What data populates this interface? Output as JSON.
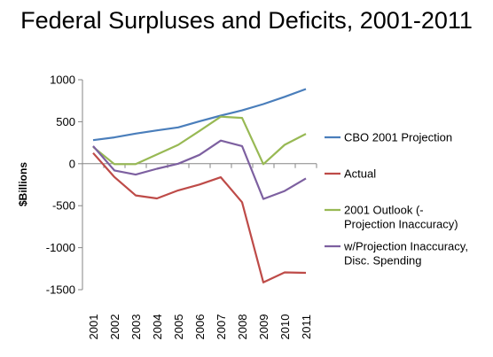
{
  "chart_data": {
    "type": "line",
    "title": "Federal Surpluses and Deficits, 2001-2011",
    "xlabel": "",
    "ylabel": "$Billions",
    "categories": [
      "2001",
      "2002",
      "2003",
      "2004",
      "2005",
      "2006",
      "2007",
      "2008",
      "2009",
      "2010",
      "2011"
    ],
    "ylim": [
      -1500,
      1000
    ],
    "yticks": [
      1000,
      500,
      0,
      -500,
      -1000,
      -1500
    ],
    "grid": false,
    "legend_position": "right",
    "series": [
      {
        "name": "CBO 2001 Projection",
        "color": "#4a7ebb",
        "values": [
          281,
          313,
          359,
          397,
          433,
          505,
          573,
          635,
          710,
          796,
          889
        ]
      },
      {
        "name": "Actual",
        "color": "#be4b48",
        "values": [
          128,
          -158,
          -378,
          -413,
          -318,
          -248,
          -161,
          -459,
          -1413,
          -1294,
          -1300
        ]
      },
      {
        "name": "2001 Outlook (-Projection Inaccuracy)",
        "color": "#98b954",
        "legend_lines": [
          "2001 Outlook (-",
          "Projection Inaccuracy)"
        ],
        "values": [
          200,
          -5,
          -5,
          110,
          225,
          390,
          560,
          545,
          -5,
          225,
          355
        ]
      },
      {
        "name": "w/Projection Inaccuracy, Disc. Spending",
        "color": "#7d60a0",
        "legend_lines": [
          "w/Projection Inaccuracy,",
          "Disc. Spending"
        ],
        "values": [
          210,
          -80,
          -130,
          -60,
          0,
          105,
          275,
          210,
          -420,
          -325,
          -175
        ]
      }
    ]
  }
}
